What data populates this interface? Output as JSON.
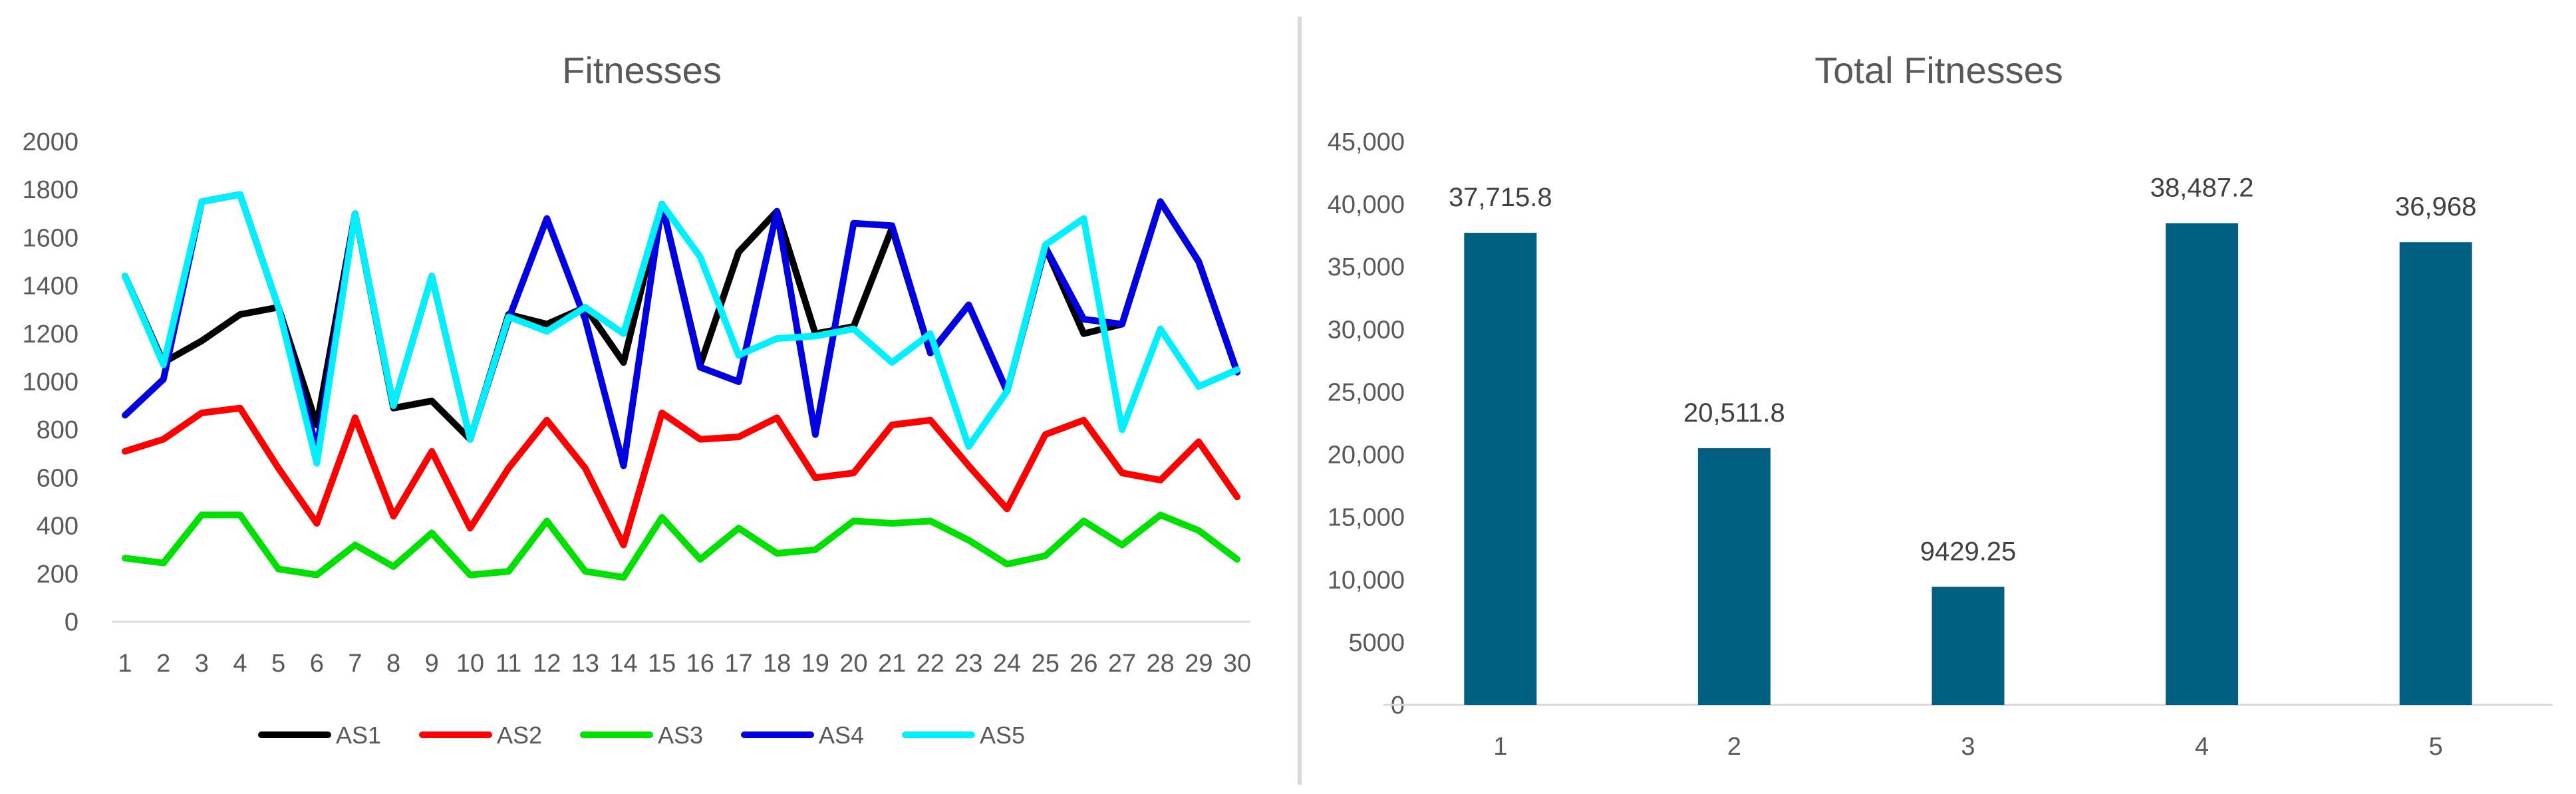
{
  "chart_data": [
    {
      "type": "line",
      "title": "Fitnesses",
      "categories": [
        "1",
        "2",
        "3",
        "4",
        "5",
        "6",
        "7",
        "8",
        "9",
        "10",
        "11",
        "12",
        "13",
        "14",
        "15",
        "16",
        "17",
        "18",
        "19",
        "20",
        "21",
        "22",
        "23",
        "24",
        "25",
        "26",
        "27",
        "28",
        "29",
        "30"
      ],
      "y_ticks": [
        "0",
        "200",
        "400",
        "600",
        "800",
        "1000",
        "1200",
        "1400",
        "1600",
        "1800",
        "2000"
      ],
      "ylim": [
        0,
        2000
      ],
      "grid": false,
      "legend": "bottom",
      "series": [
        {
          "name": "AS1",
          "color": "#000000",
          "values": [
            1440,
            1080,
            1170,
            1280,
            1310,
            820,
            1700,
            890,
            920,
            760,
            1280,
            1240,
            1310,
            1080,
            1740,
            1070,
            1540,
            1710,
            1200,
            1230,
            1640,
            1120,
            1320,
            960,
            1560,
            1200,
            1240,
            1750,
            1500,
            1040
          ]
        },
        {
          "name": "AS2",
          "color": "#FF0000",
          "values": [
            710,
            760,
            870,
            890,
            640,
            410,
            850,
            440,
            710,
            390,
            640,
            840,
            640,
            320,
            870,
            760,
            770,
            850,
            600,
            620,
            820,
            840,
            650,
            470,
            780,
            840,
            620,
            590,
            750,
            520
          ]
        },
        {
          "name": "AS3",
          "color": "#00E000",
          "values": [
            265,
            245,
            445,
            445,
            220,
            195,
            320,
            230,
            370,
            195,
            210,
            420,
            210,
            185,
            435,
            260,
            390,
            285,
            300,
            420,
            410,
            420,
            340,
            240,
            275,
            420,
            320,
            445,
            380,
            260
          ]
        },
        {
          "name": "AS4",
          "color": "#0000E0",
          "values": [
            860,
            1010,
            1750,
            1780,
            1310,
            720,
            1700,
            900,
            1440,
            760,
            1260,
            1680,
            1260,
            650,
            1740,
            1060,
            1000,
            1710,
            780,
            1660,
            1650,
            1120,
            1320,
            960,
            1560,
            1260,
            1240,
            1750,
            1500,
            1040
          ]
        },
        {
          "name": "AS5",
          "color": "#00F0FF",
          "values": [
            1440,
            1070,
            1750,
            1780,
            1310,
            660,
            1700,
            900,
            1440,
            760,
            1270,
            1210,
            1310,
            1200,
            1740,
            1520,
            1110,
            1180,
            1190,
            1220,
            1080,
            1200,
            730,
            960,
            1570,
            1680,
            800,
            1220,
            980,
            1050
          ]
        }
      ]
    },
    {
      "type": "bar",
      "title": "Total Fitnesses",
      "categories": [
        "1",
        "2",
        "3",
        "4",
        "5"
      ],
      "values": [
        37715.8,
        20511.8,
        9429.25,
        38487.2,
        36968
      ],
      "data_labels": [
        "37,715.8",
        "20,511.8",
        "9429.25",
        "38,487.2",
        "36,968"
      ],
      "y_ticks": [
        "0",
        "5000",
        "10,000",
        "15,000",
        "20,000",
        "25,000",
        "30,000",
        "35,000",
        "40,000",
        "45,000"
      ],
      "ylim": [
        0,
        45000
      ],
      "grid": false,
      "color": "#005F83"
    }
  ]
}
